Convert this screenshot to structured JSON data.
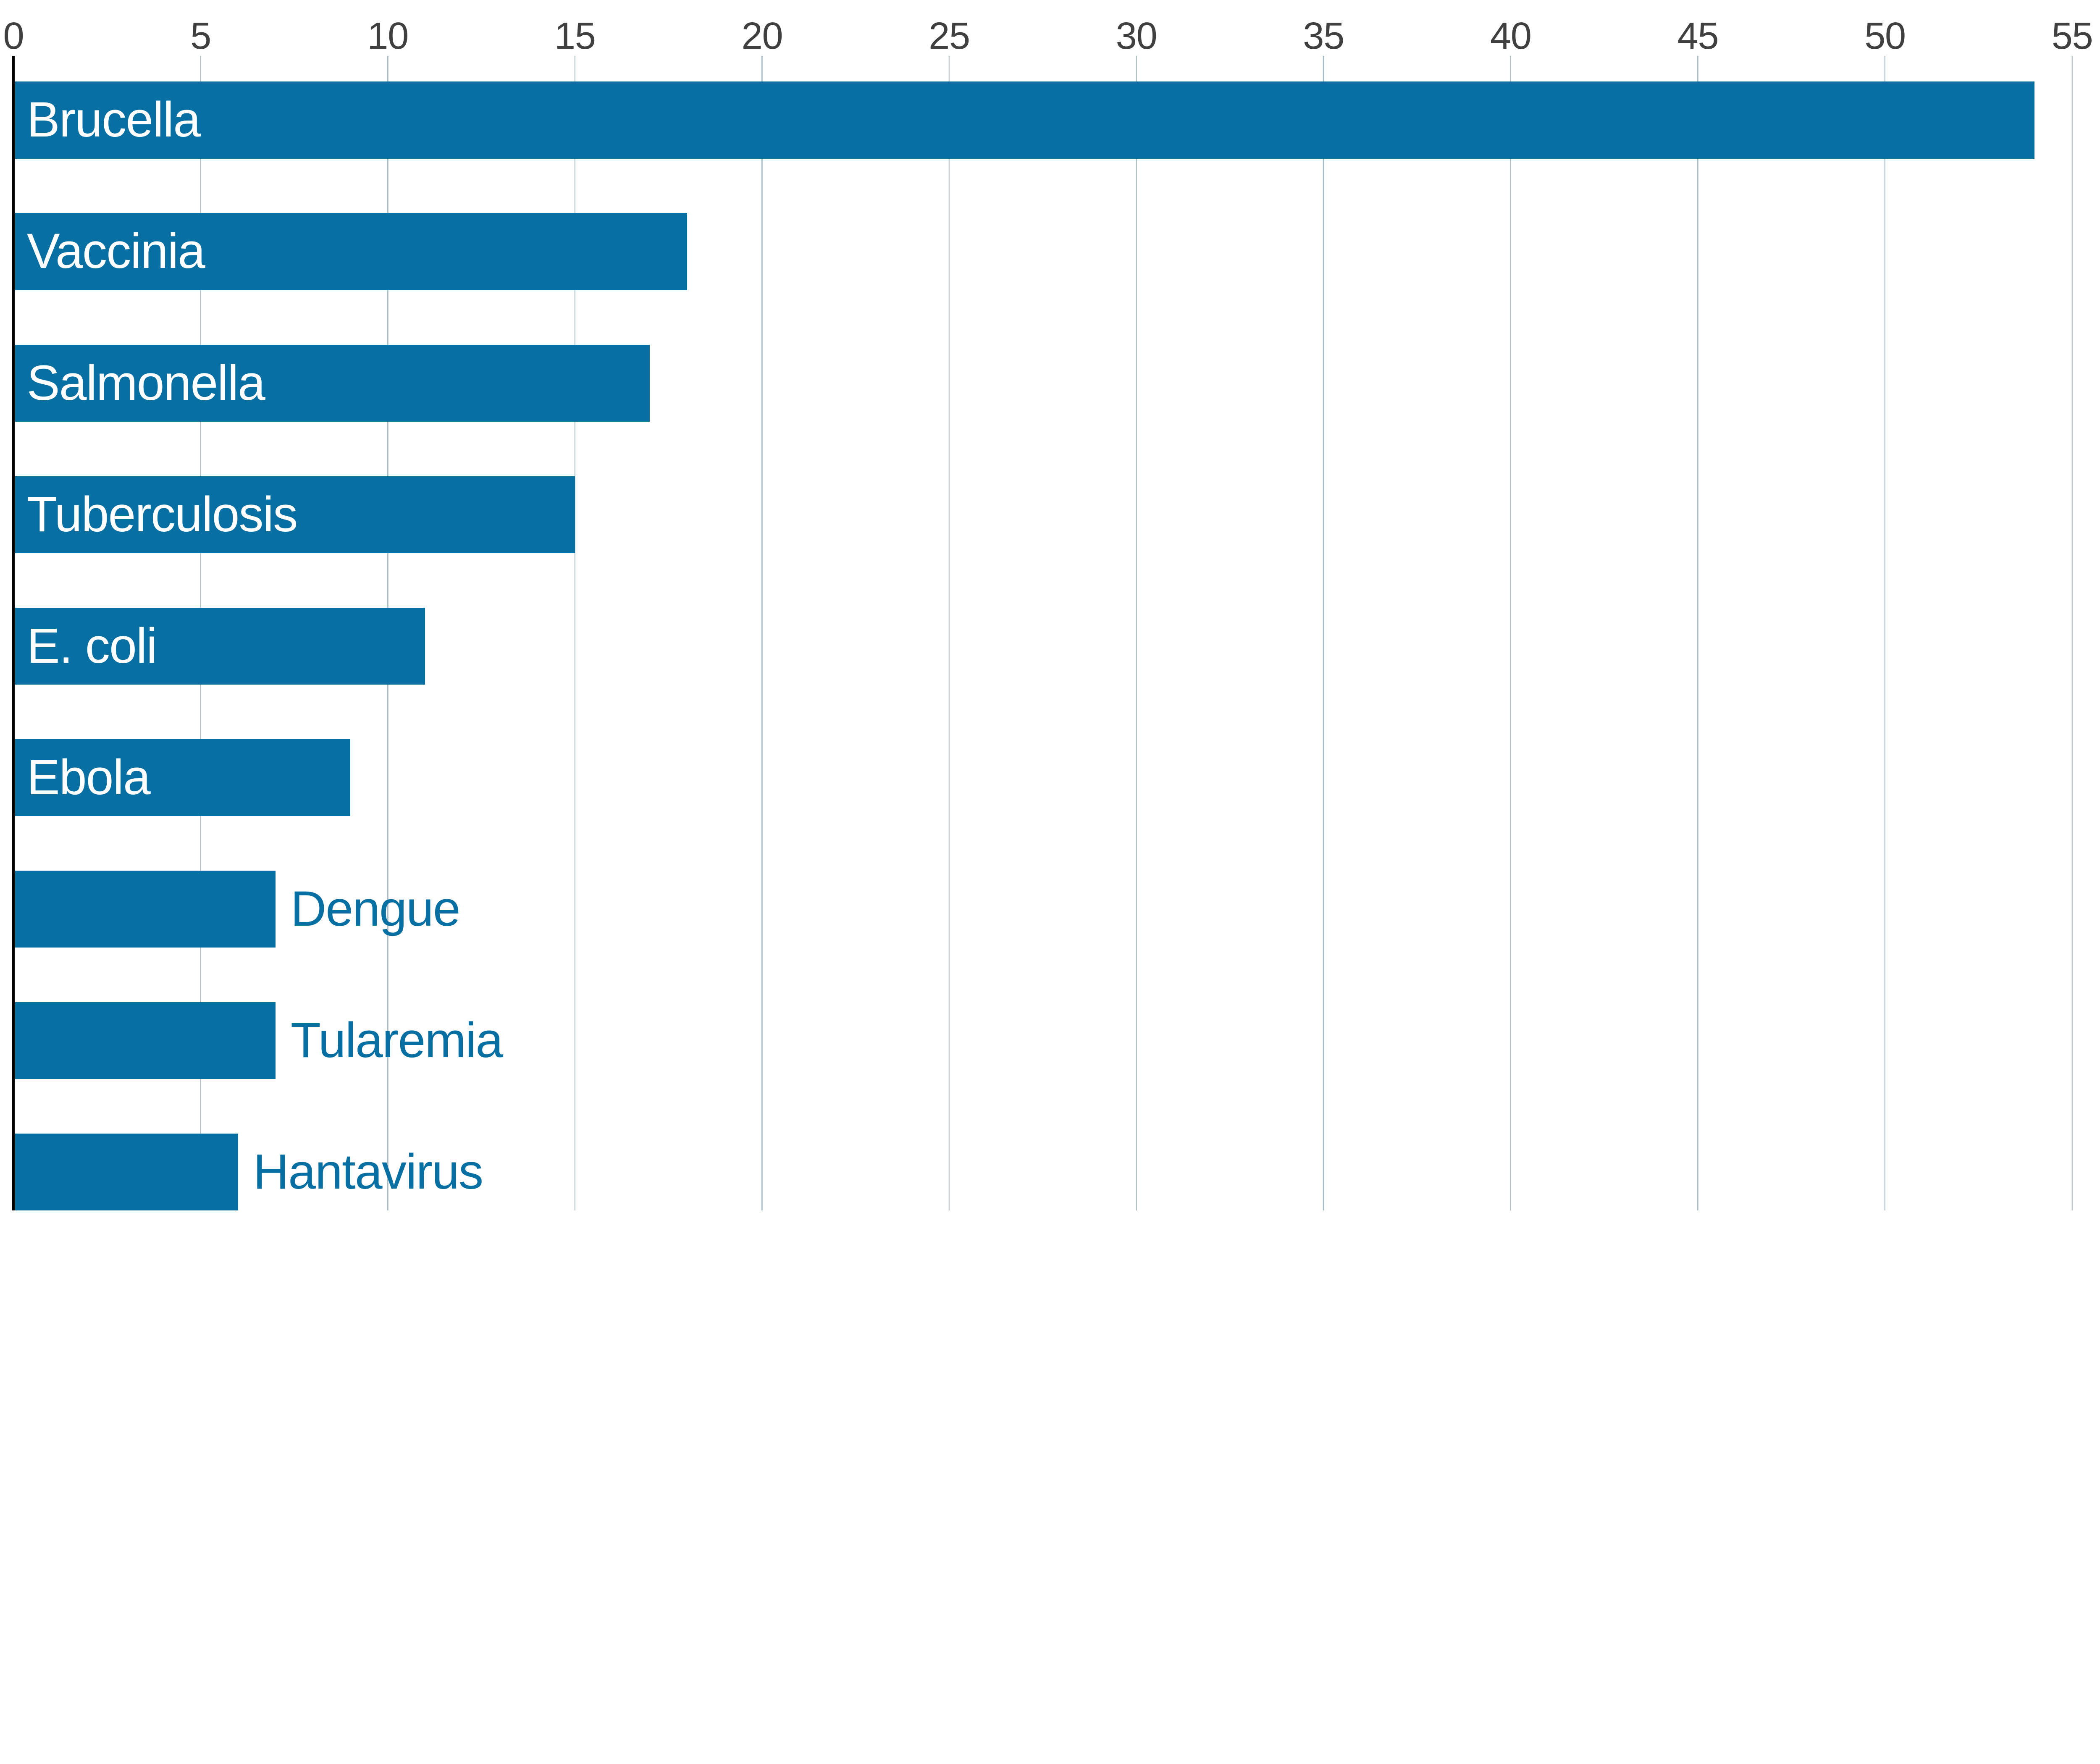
{
  "chart_data": {
    "type": "bar",
    "orientation": "horizontal",
    "title": "",
    "xlabel": "",
    "ylabel": "",
    "categories": [
      "Brucella",
      "Vaccinia",
      "Salmonella",
      "Tuberculosis",
      "E. coli",
      "Ebola",
      "Dengue",
      "Tularemia",
      "Hantavirus"
    ],
    "values": [
      54,
      18,
      17,
      15,
      11,
      9,
      7,
      7,
      6
    ],
    "label_placement": [
      "inside",
      "inside",
      "inside",
      "inside",
      "inside",
      "inside",
      "outside",
      "outside",
      "outside"
    ],
    "x_ticks": [
      0,
      5,
      10,
      15,
      20,
      25,
      30,
      35,
      40,
      45,
      50,
      55
    ],
    "xlim": [
      0,
      55
    ],
    "grid": "vertical-gridlines-on",
    "legend": "none",
    "colors": {
      "bar": "#076fa2",
      "label_inside": "#ffffff",
      "label_outside": "#076fa2",
      "gridline": "#a8bac4",
      "axis_line": "#000000",
      "tick_label": "#404040",
      "background": "#ffffff"
    }
  }
}
